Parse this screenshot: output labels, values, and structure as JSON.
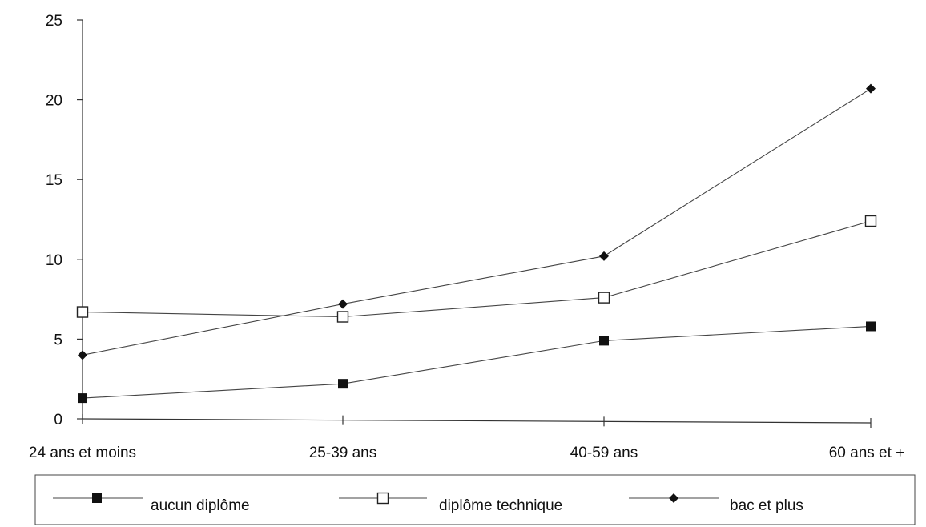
{
  "chart_data": {
    "type": "line",
    "categories": [
      "24 ans et moins",
      "25-39 ans",
      "40-59 ans",
      "60 ans et +"
    ],
    "ylim": [
      0,
      25
    ],
    "yticks": [
      0,
      5,
      10,
      15,
      20,
      25
    ],
    "grid": false,
    "legend_position": "bottom",
    "series": [
      {
        "name": "aucun diplôme",
        "marker": "filled-square",
        "values": [
          1.3,
          2.2,
          4.9,
          5.8
        ]
      },
      {
        "name": "diplôme technique",
        "marker": "open-square",
        "values": [
          6.7,
          6.4,
          7.6,
          12.4
        ]
      },
      {
        "name": "bac et plus",
        "marker": "filled-diamond",
        "values": [
          4.0,
          7.2,
          10.2,
          20.7
        ]
      }
    ],
    "colors": {
      "line": "#444444",
      "marker": "#111111",
      "axis": "#333333"
    }
  }
}
